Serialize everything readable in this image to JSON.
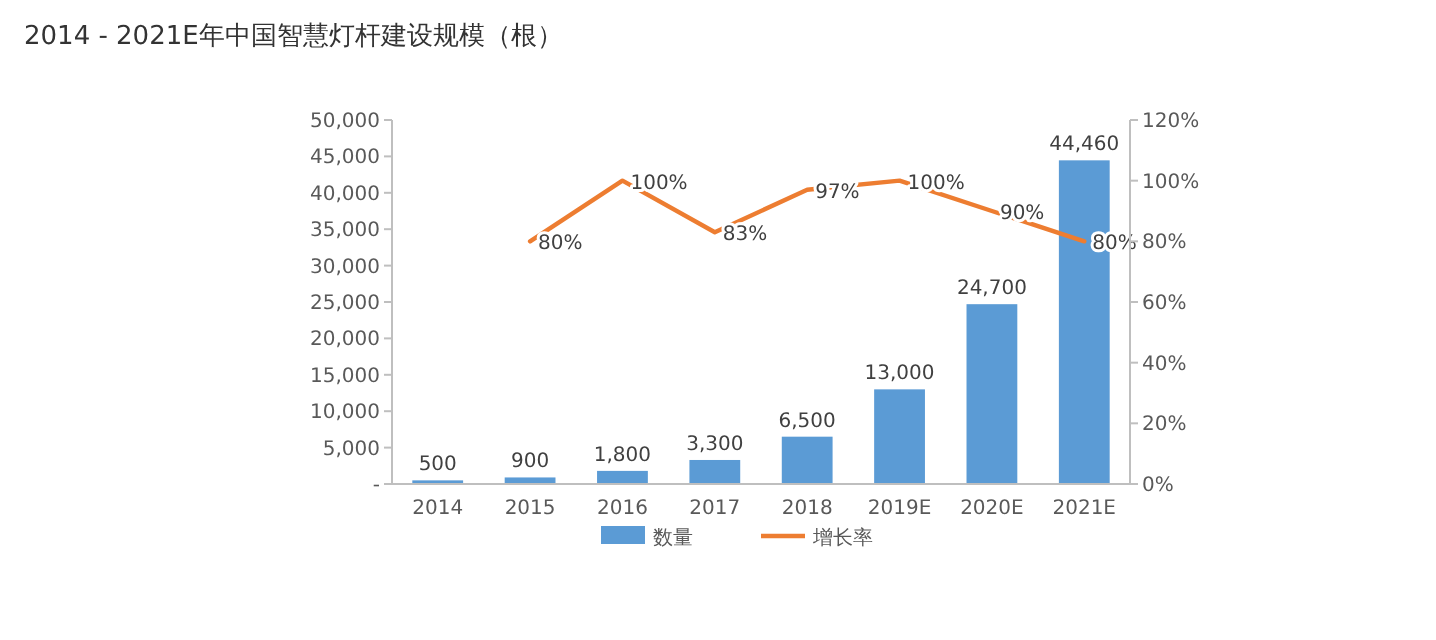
{
  "chart_data": {
    "type": "bar",
    "title": "2014 - 2021E年中国智慧灯杆建设规模（根）",
    "categories": [
      "2014",
      "2015",
      "2016",
      "2017",
      "2018",
      "2019E",
      "2020E",
      "2021E"
    ],
    "series": [
      {
        "name": "数量",
        "color": "#5b9bd5",
        "values": [
          500,
          900,
          1800,
          3300,
          6500,
          13000,
          24700,
          44460
        ],
        "value_labels": [
          "500",
          "900",
          "1,800",
          "3,300",
          "6,500",
          "13,000",
          "24,700",
          "44,460"
        ]
      },
      {
        "name": "增长率",
        "type": "line",
        "axis": "y2",
        "color": "#ed7d31",
        "values": [
          null,
          80,
          100,
          83,
          97,
          100,
          90,
          80
        ],
        "value_labels": [
          null,
          "80%",
          "100%",
          "83%",
          "97%",
          "100%",
          "90%",
          "80%"
        ]
      }
    ],
    "ylim": [
      0,
      50000
    ],
    "yticks": [
      {
        "value": 0,
        "label": "-"
      },
      {
        "value": 5000,
        "label": "5,000"
      },
      {
        "value": 10000,
        "label": "10,000"
      },
      {
        "value": 15000,
        "label": "15,000"
      },
      {
        "value": 20000,
        "label": "20,000"
      },
      {
        "value": 25000,
        "label": "25,000"
      },
      {
        "value": 30000,
        "label": "30,000"
      },
      {
        "value": 35000,
        "label": "35,000"
      },
      {
        "value": 40000,
        "label": "40,000"
      },
      {
        "value": 45000,
        "label": "45,000"
      },
      {
        "value": 50000,
        "label": "50,000"
      }
    ],
    "y2lim": [
      0,
      120
    ],
    "y2ticks": [
      {
        "value": 0,
        "label": "0%"
      },
      {
        "value": 20,
        "label": "20%"
      },
      {
        "value": 40,
        "label": "40%"
      },
      {
        "value": 60,
        "label": "60%"
      },
      {
        "value": 80,
        "label": "80%"
      },
      {
        "value": 100,
        "label": "100%"
      },
      {
        "value": 120,
        "label": "120%"
      }
    ],
    "legend": "bottom",
    "grid": false,
    "marker": "none",
    "line_style": "solid"
  }
}
